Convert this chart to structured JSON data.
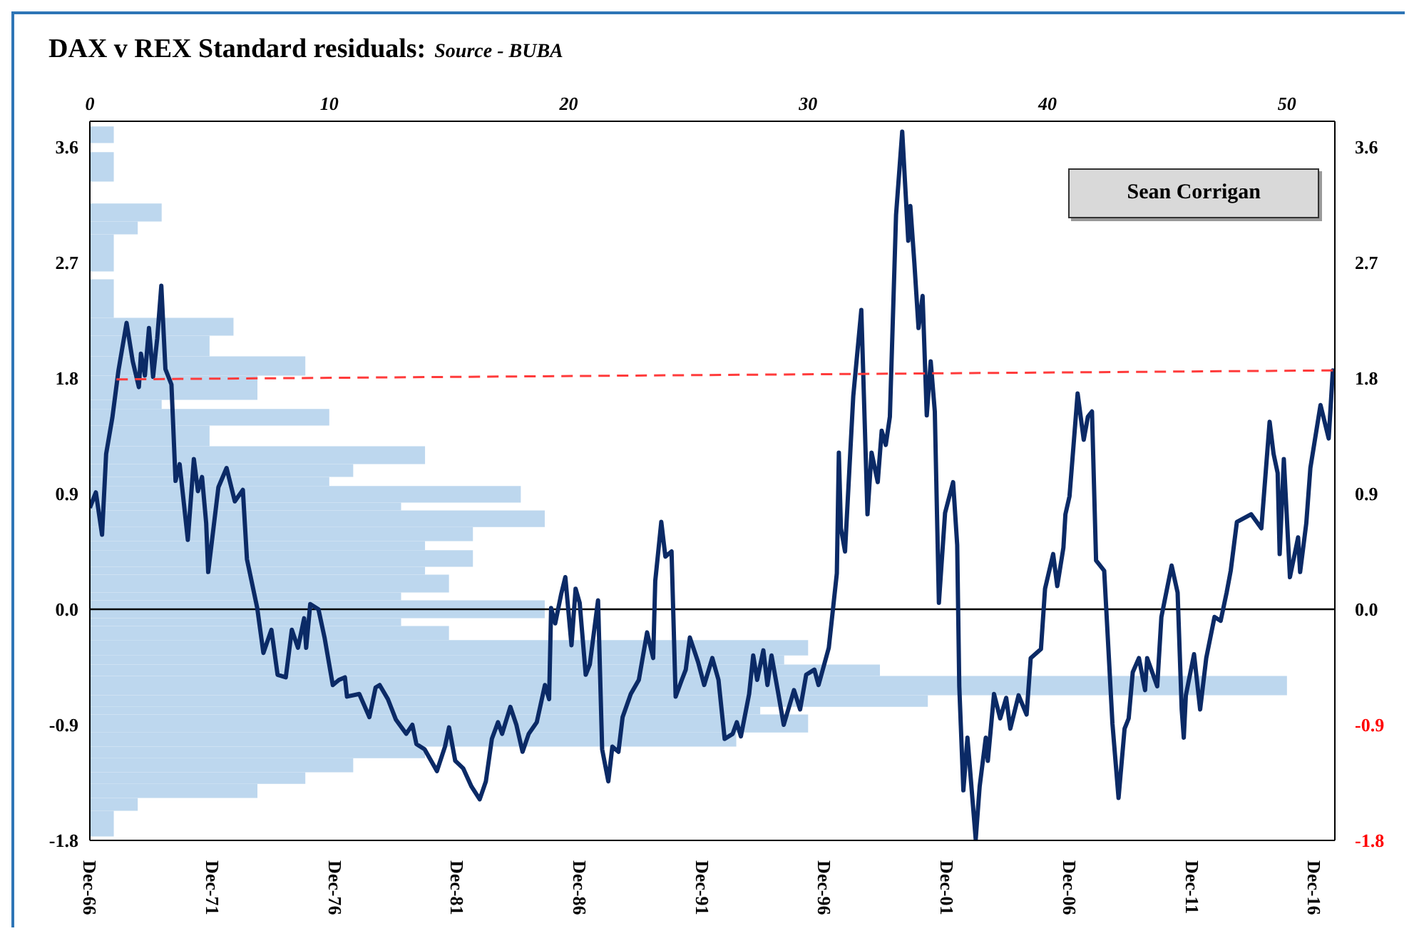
{
  "chart_data": [
    {
      "type": "line",
      "title": "DAX v REX Standard residuals:",
      "subtitle": "Source - BUBA",
      "annotations": [
        "Sean Corrigan"
      ],
      "xlim": [
        "1966-12",
        "2017-10"
      ],
      "xticks": [
        {
          "value": "1966-12",
          "label": "Dec-66"
        },
        {
          "value": "1971-12",
          "label": "Dec-71"
        },
        {
          "value": "1976-12",
          "label": "Dec-76"
        },
        {
          "value": "1981-12",
          "label": "Dec-81"
        },
        {
          "value": "1986-12",
          "label": "Dec-86"
        },
        {
          "value": "1991-12",
          "label": "Dec-91"
        },
        {
          "value": "1996-12",
          "label": "Dec-96"
        },
        {
          "value": "2001-12",
          "label": "Dec-01"
        },
        {
          "value": "2006-12",
          "label": "Dec-06"
        },
        {
          "value": "2011-12",
          "label": "Dec-11"
        },
        {
          "value": "2016-12",
          "label": "Dec-16"
        }
      ],
      "ylim": [
        -1.8,
        3.8
      ],
      "yticks": [
        -1.8,
        -0.9,
        {
          "value": 0,
          "label": "0.0"
        },
        0.9,
        1.8,
        2.7,
        3.6
      ],
      "y2lim": [
        -1.8,
        3.8
      ],
      "y2ticks": [
        -1.8,
        -0.9,
        {
          "value": 0,
          "label": "0.0"
        },
        0.9,
        1.8,
        2.7,
        3.6
      ],
      "ref_lines": [
        {
          "axis": "y",
          "value": 0,
          "color": "#000000"
        }
      ],
      "series": [
        {
          "type": "line",
          "color": "#0b2a66",
          "x": [
            "1966-12",
            "1967-03",
            "1967-06",
            "1967-08",
            "1967-11",
            "1968-02",
            "1968-06",
            "1968-09",
            "1968-12",
            "1969-01",
            "1969-03",
            "1969-05",
            "1969-07",
            "1969-09",
            "1969-11",
            "1970-01",
            "1970-04",
            "1970-06",
            "1970-08",
            "1970-12",
            "1971-03",
            "1971-05",
            "1971-07",
            "1971-09",
            "1971-10",
            "1972-03",
            "1972-07",
            "1972-11",
            "1973-03",
            "1973-05",
            "1973-10",
            "1974-01",
            "1974-05",
            "1974-08",
            "1974-12",
            "1975-03",
            "1975-06",
            "1975-09",
            "1975-10",
            "1975-12",
            "1976-04",
            "1976-07",
            "1976-11",
            "1977-02",
            "1977-05",
            "1977-06",
            "1977-12",
            "1978-05",
            "1978-08",
            "1978-10",
            "1979-02",
            "1979-06",
            "1979-11",
            "1980-02",
            "1980-04",
            "1980-08",
            "1981-02",
            "1981-06",
            "1981-08",
            "1981-11",
            "1982-03",
            "1982-07",
            "1982-11",
            "1983-02",
            "1983-05",
            "1983-08",
            "1983-10",
            "1984-02",
            "1984-05",
            "1984-08",
            "1984-11",
            "1985-03",
            "1985-07",
            "1985-09",
            "1985-10",
            "1985-12",
            "1986-03",
            "1986-05",
            "1986-08",
            "1986-10",
            "1986-12",
            "1987-03",
            "1987-05",
            "1987-09",
            "1987-11",
            "1988-02",
            "1988-04",
            "1988-07",
            "1988-09",
            "1989-01",
            "1989-05",
            "1989-09",
            "1989-12",
            "1990-01",
            "1990-04",
            "1990-06",
            "1990-09",
            "1990-11",
            "1991-02",
            "1991-04",
            "1991-06",
            "1991-10",
            "1992-01",
            "1992-05",
            "1992-08",
            "1992-11",
            "1993-03",
            "1993-05",
            "1993-07",
            "1993-11",
            "1994-01",
            "1994-03",
            "1994-06",
            "1994-08",
            "1994-10",
            "1995-01",
            "1995-04",
            "1995-09",
            "1995-12",
            "1996-03",
            "1996-07",
            "1996-09",
            "1997-02",
            "1997-06",
            "1997-07",
            "1997-08",
            "1997-10",
            "1998-02",
            "1998-06",
            "1998-09",
            "1998-11",
            "1999-02",
            "1999-04",
            "1999-06",
            "1999-08",
            "1999-11",
            "2000-02",
            "2000-05",
            "2000-06",
            "2000-08",
            "2000-10",
            "2000-12",
            "2001-02",
            "2001-04",
            "2001-06",
            "2001-08",
            "2001-11",
            "2002-03",
            "2002-05",
            "2002-06",
            "2002-08",
            "2002-10",
            "2003-02",
            "2003-04",
            "2003-07",
            "2003-08",
            "2003-11",
            "2004-02",
            "2004-05",
            "2004-07",
            "2004-11",
            "2005-03",
            "2005-05",
            "2005-10",
            "2005-12",
            "2006-04",
            "2006-06",
            "2006-09",
            "2006-10",
            "2006-12",
            "2007-04",
            "2007-07",
            "2007-09",
            "2007-11",
            "2008-01",
            "2008-05",
            "2008-09",
            "2008-12",
            "2009-03",
            "2009-05",
            "2009-07",
            "2009-10",
            "2010-01",
            "2010-02",
            "2010-07",
            "2010-09",
            "2011-02",
            "2011-05",
            "2011-07",
            "2011-08",
            "2011-09",
            "2012-01",
            "2012-04",
            "2012-07",
            "2012-11",
            "2013-02",
            "2013-05",
            "2013-07",
            "2013-10",
            "2014-05",
            "2014-10",
            "2015-02",
            "2015-04",
            "2015-06",
            "2015-07",
            "2015-09",
            "2015-12",
            "2016-04",
            "2016-05",
            "2016-08",
            "2016-10",
            "2017-02",
            "2017-03",
            "2017-07",
            "2017-09",
            "2017-10"
          ],
          "values": [
            0.79,
            0.91,
            0.58,
            1.21,
            1.49,
            1.86,
            2.23,
            1.93,
            1.73,
            1.99,
            1.82,
            2.19,
            1.81,
            2.11,
            2.52,
            1.87,
            1.75,
            1.0,
            1.13,
            0.54,
            1.17,
            0.92,
            1.03,
            0.67,
            0.29,
            0.95,
            1.1,
            0.84,
            0.93,
            0.39,
            0.01,
            -0.34,
            -0.16,
            -0.51,
            -0.53,
            -0.16,
            -0.3,
            -0.07,
            -0.3,
            0.04,
            0.0,
            -0.22,
            -0.59,
            -0.55,
            -0.53,
            -0.68,
            -0.66,
            -0.84,
            -0.61,
            -0.59,
            -0.7,
            -0.86,
            -0.97,
            -0.9,
            -1.05,
            -1.09,
            -1.26,
            -1.07,
            -0.92,
            -1.18,
            -1.24,
            -1.38,
            -1.48,
            -1.34,
            -1.01,
            -0.88,
            -0.97,
            -0.76,
            -0.9,
            -1.11,
            -0.97,
            -0.88,
            -0.59,
            -0.7,
            0.01,
            -0.11,
            0.12,
            0.25,
            -0.28,
            0.16,
            0.05,
            -0.51,
            -0.43,
            0.07,
            -1.09,
            -1.34,
            -1.07,
            -1.11,
            -0.84,
            -0.66,
            -0.55,
            -0.18,
            -0.38,
            0.22,
            0.68,
            0.41,
            0.45,
            -0.68,
            -0.55,
            -0.47,
            -0.22,
            -0.41,
            -0.59,
            -0.38,
            -0.55,
            -1.01,
            -0.97,
            -0.88,
            -0.99,
            -0.66,
            -0.36,
            -0.55,
            -0.32,
            -0.59,
            -0.36,
            -0.63,
            -0.9,
            -0.63,
            -0.78,
            -0.51,
            -0.47,
            -0.59,
            -0.3,
            0.28,
            1.22,
            0.63,
            0.45,
            1.66,
            2.33,
            0.74,
            1.22,
            0.99,
            1.39,
            1.28,
            1.5,
            3.07,
            3.72,
            2.87,
            3.14,
            2.69,
            2.19,
            2.44,
            1.51,
            1.93,
            1.54,
            0.05,
            0.75,
            0.99,
            0.5,
            -0.6,
            -1.41,
            -1.0,
            -1.79,
            -1.38,
            -1.0,
            -1.18,
            -0.66,
            -0.85,
            -0.69,
            -0.93,
            -0.67,
            -0.82,
            -0.38,
            -0.31,
            0.16,
            0.43,
            0.18,
            0.48,
            0.74,
            0.88,
            1.68,
            1.32,
            1.5,
            1.54,
            0.38,
            0.3,
            -0.89,
            -1.47,
            -0.93,
            -0.85,
            -0.49,
            -0.38,
            -0.63,
            -0.38,
            -0.6,
            -0.06,
            0.34,
            0.13,
            -0.78,
            -1.0,
            -0.67,
            -0.35,
            -0.78,
            -0.38,
            -0.06,
            -0.09,
            0.13,
            0.3,
            0.68,
            0.74,
            0.63,
            1.46,
            1.21,
            1.06,
            0.43,
            1.17,
            0.25,
            0.56,
            0.29,
            0.67,
            1.1,
            1.5,
            1.59,
            1.33,
            1.86,
            1.77
          ]
        },
        {
          "type": "line",
          "color": "#ff3b3b",
          "line_style": "dashed",
          "x": [
            "1968-01",
            "2017-10"
          ],
          "values": [
            1.79,
            1.86
          ]
        }
      ]
    },
    {
      "type": "histogram",
      "orientation": "horizontal",
      "color": "#bdd7ee",
      "tick_labels": "x",
      "xlim": [
        0,
        52
      ],
      "xticks": [
        0,
        10,
        20,
        30,
        40,
        50
      ],
      "ylim": [
        -1.8,
        3.8
      ],
      "bins": [
        -1.77,
        -1.57,
        -1.47,
        -1.36,
        -1.27,
        -1.16,
        -1.07,
        -0.96,
        -0.82,
        -0.76,
        -0.67,
        -0.52,
        -0.43,
        -0.36,
        -0.24,
        -0.13,
        -0.07,
        0.07,
        0.13,
        0.27,
        0.33,
        0.46,
        0.53,
        0.64,
        0.77,
        0.83,
        0.96,
        1.03,
        1.13,
        1.27,
        1.43,
        1.56,
        1.63,
        1.82,
        1.97,
        2.13,
        2.27,
        2.57,
        2.63,
        2.92,
        3.02,
        3.16,
        3.33,
        3.56,
        3.63,
        3.76
      ],
      "values": [
        1,
        2,
        7,
        9,
        11,
        14,
        27,
        30,
        28,
        35,
        50,
        33,
        29,
        30,
        15,
        13,
        19,
        13,
        15,
        14,
        16,
        14,
        16,
        19,
        13,
        18,
        10,
        11,
        14,
        5,
        10,
        3,
        7,
        9,
        5,
        6,
        1,
        0,
        1,
        2,
        3,
        0,
        1,
        0,
        1
      ]
    }
  ]
}
